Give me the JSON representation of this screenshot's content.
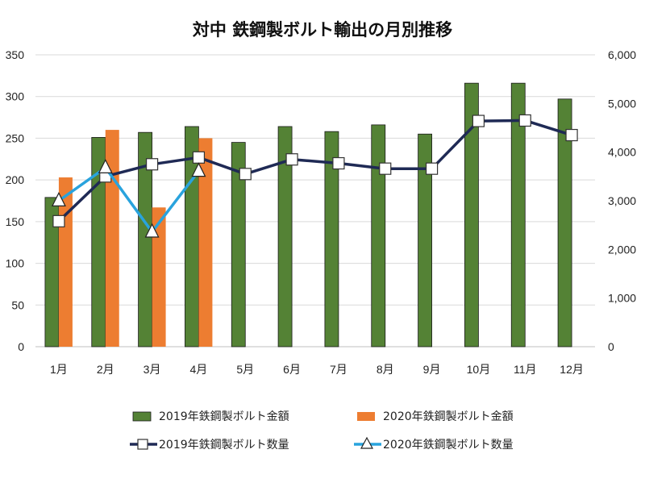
{
  "chart_data": {
    "type": "bar",
    "title": "対中 鉄鋼製ボルト輸出の月別推移",
    "categories": [
      "1月",
      "2月",
      "3月",
      "4月",
      "5月",
      "6月",
      "7月",
      "8月",
      "9月",
      "10月",
      "11月",
      "12月"
    ],
    "y_left": {
      "min": 0,
      "max": 350,
      "ticks": [
        "0",
        "50",
        "100",
        "150",
        "200",
        "250",
        "300",
        "350"
      ]
    },
    "y_right": {
      "min": 0,
      "max": 6000,
      "ticks": [
        "0",
        "1,000",
        "2,000",
        "3,000",
        "4,000",
        "5,000",
        "6,000"
      ]
    },
    "grid": true,
    "legend_position": "bottom",
    "series": [
      {
        "name": "2019年鉄鋼製ボルト金額",
        "type": "bar",
        "axis": "left",
        "color": "#548235",
        "values": [
          179,
          251,
          257,
          264,
          245,
          264,
          258,
          266,
          255,
          316,
          316,
          297
        ]
      },
      {
        "name": "2020年鉄鋼製ボルト金額",
        "type": "bar",
        "axis": "left",
        "color": "#ED7D31",
        "values": [
          203,
          260,
          167,
          250,
          null,
          null,
          null,
          null,
          null,
          null,
          null,
          null
        ]
      },
      {
        "name": "2019年鉄鋼製ボルト数量",
        "type": "line",
        "axis": "right",
        "color": "#1F2A55",
        "marker": "square",
        "values": [
          2580,
          3500,
          3750,
          3890,
          3550,
          3850,
          3770,
          3660,
          3660,
          4640,
          4650,
          4350
        ]
      },
      {
        "name": "2020年鉄鋼製ボルト数量",
        "type": "line",
        "axis": "right",
        "color": "#29A3DD",
        "marker": "triangle",
        "values": [
          3000,
          3680,
          2360,
          3610,
          null,
          null,
          null,
          null,
          null,
          null,
          null,
          null
        ]
      }
    ]
  }
}
